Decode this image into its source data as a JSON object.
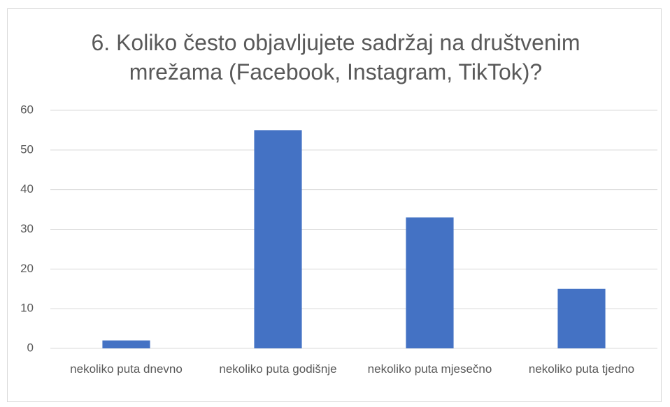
{
  "chart_data": {
    "type": "bar",
    "title": "6. Koliko često objavljujete sadržaj na društvenim mrežama (Facebook, Instagram, TikTok)?",
    "categories": [
      "nekoliko puta dnevno",
      "nekoliko puta godišnje",
      "nekoliko puta mjesečno",
      "nekoliko puta tjedno"
    ],
    "values": [
      2,
      55,
      33,
      15
    ],
    "color": "#4472c4",
    "ylim": [
      0,
      60
    ],
    "yticks": [
      0,
      10,
      20,
      30,
      40,
      50,
      60
    ],
    "grid": true
  }
}
